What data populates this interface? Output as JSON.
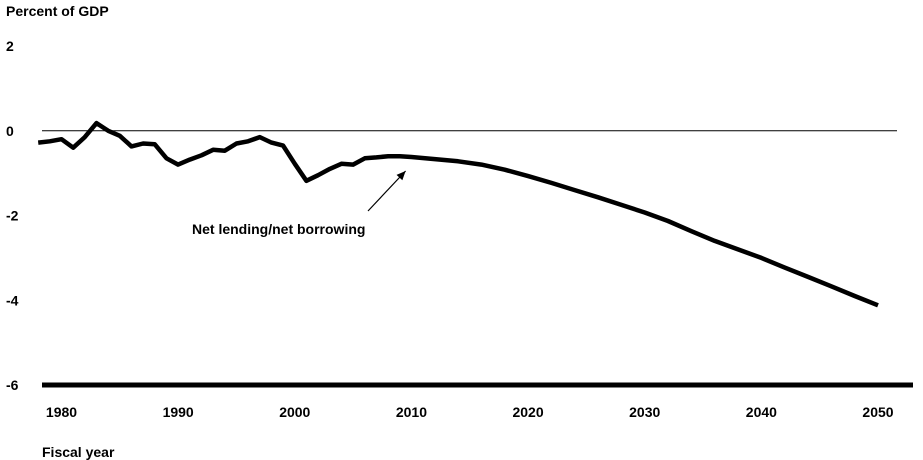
{
  "chart_data": {
    "type": "line",
    "title": "",
    "ylabel": "Percent of GDP",
    "xlabel": "Fiscal year",
    "xlim": [
      1978.5,
      2053
    ],
    "ylim": [
      -6,
      2
    ],
    "yticks": [
      2,
      0,
      -2,
      -4,
      -6
    ],
    "xticks": [
      1980,
      1990,
      2000,
      2010,
      2020,
      2030,
      2040,
      2050
    ],
    "reference_line_y": 0,
    "grid": false,
    "line_color": "#000000",
    "annotation": {
      "text": "Net lending/net borrowing",
      "arrow_to": {
        "x": 2009.5,
        "y": -0.95
      }
    },
    "series": [
      {
        "name": "",
        "x": [
          1978,
          1979,
          1980,
          1981,
          1982,
          1983,
          1984,
          1985,
          1986,
          1987,
          1988,
          1989,
          1990,
          1991,
          1992,
          1993,
          1994,
          1995,
          1996,
          1997,
          1998,
          1999,
          2000,
          2001,
          2002,
          2003,
          2004,
          2005,
          2006,
          2007,
          2008,
          2009,
          2010,
          2012,
          2014,
          2016,
          2018,
          2020,
          2022,
          2024,
          2026,
          2028,
          2030,
          2032,
          2034,
          2036,
          2038,
          2040,
          2042,
          2044,
          2046,
          2048,
          2050
        ],
        "y": [
          -0.28,
          -0.25,
          -0.2,
          -0.4,
          -0.15,
          0.18,
          0.0,
          -0.12,
          -0.37,
          -0.3,
          -0.32,
          -0.65,
          -0.8,
          -0.68,
          -0.58,
          -0.45,
          -0.47,
          -0.3,
          -0.25,
          -0.15,
          -0.28,
          -0.35,
          -0.78,
          -1.18,
          -1.05,
          -0.9,
          -0.78,
          -0.8,
          -0.65,
          -0.63,
          -0.6,
          -0.6,
          -0.62,
          -0.67,
          -0.72,
          -0.8,
          -0.92,
          -1.07,
          -1.23,
          -1.4,
          -1.57,
          -1.75,
          -1.93,
          -2.13,
          -2.37,
          -2.6,
          -2.8,
          -3.0,
          -3.23,
          -3.45,
          -3.67,
          -3.9,
          -4.12
        ]
      }
    ]
  }
}
